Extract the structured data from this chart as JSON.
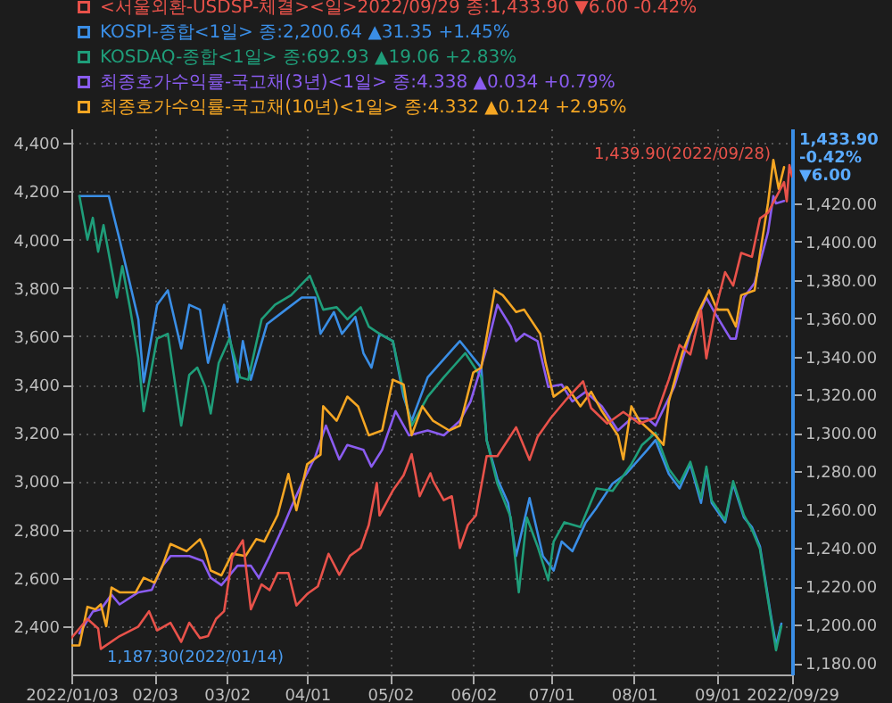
{
  "chart_data": {
    "type": "line",
    "legend": "top left",
    "grid": true,
    "xlim": [
      "2022-01-03",
      "2022-09-29"
    ],
    "xticks": [
      {
        "value": "2022-01-03",
        "label": "2022/01/03"
      },
      {
        "value": "2022-02-03",
        "label": "02/03"
      },
      {
        "value": "2022-03-02",
        "label": "03/02"
      },
      {
        "value": "2022-04-01",
        "label": "04/01"
      },
      {
        "value": "2022-05-02",
        "label": "05/02"
      },
      {
        "value": "2022-06-02",
        "label": "06/02"
      },
      {
        "value": "2022-07-01",
        "label": "07/01"
      },
      {
        "value": "2022-08-01",
        "label": "08/01"
      },
      {
        "value": "2022-09-01",
        "label": "09/01"
      },
      {
        "value": "2022-09-29",
        "label": "2022/09/29"
      }
    ],
    "ylim": [
      2200,
      4460
    ],
    "yticks": [
      {
        "value": 2400,
        "label": "2,400"
      },
      {
        "value": 2600,
        "label": "2,600"
      },
      {
        "value": 2800,
        "label": "2,800"
      },
      {
        "value": 3000,
        "label": "3,000"
      },
      {
        "value": 3200,
        "label": "3,200"
      },
      {
        "value": 3400,
        "label": "3,400"
      },
      {
        "value": 3600,
        "label": "3,600"
      },
      {
        "value": 3800,
        "label": "3,800"
      },
      {
        "value": 4000,
        "label": "4,000"
      },
      {
        "value": 4200,
        "label": "4,200"
      },
      {
        "value": 4400,
        "label": "4,400"
      }
    ],
    "y2lim": [
      1174,
      1459
    ],
    "y2ticks": [
      {
        "value": 1180,
        "label": "1,180.00"
      },
      {
        "value": 1200,
        "label": "1,200.00"
      },
      {
        "value": 1220,
        "label": "1,220.00"
      },
      {
        "value": 1240,
        "label": "1,240.00"
      },
      {
        "value": 1260,
        "label": "1,260.00"
      },
      {
        "value": 1280,
        "label": "1,280.00"
      },
      {
        "value": 1300,
        "label": "1,300.00"
      },
      {
        "value": 1320,
        "label": "1,320.00"
      },
      {
        "value": 1340,
        "label": "1,340.00"
      },
      {
        "value": 1360,
        "label": "1,360.00"
      },
      {
        "value": 1380,
        "label": "1,380.00"
      },
      {
        "value": 1400,
        "label": "1,400.00"
      },
      {
        "value": 1420,
        "label": "1,420.00"
      }
    ],
    "annotations": [
      "1,439.90(2022/09/28)",
      "1,187.30(2022/01/14)",
      "1,433.90\n-0.42%\n▼6.00"
    ],
    "series": [
      {
        "name": "<서울외환-USDSP-체결><일>2022/09/29 종:1,433.90 ▼6.00 -0.42%",
        "color": "#e8524a",
        "axis": "y2",
        "x": [
          "2022-01-03",
          "2022-01-09",
          "2022-01-13",
          "2022-01-14",
          "2022-01-21",
          "2022-01-28",
          "2022-02-01",
          "2022-02-04",
          "2022-02-09",
          "2022-02-13",
          "2022-02-16",
          "2022-02-20",
          "2022-02-23",
          "2022-02-26",
          "2022-03-01",
          "2022-03-04",
          "2022-03-08",
          "2022-03-11",
          "2022-03-15",
          "2022-03-18",
          "2022-03-21",
          "2022-03-25",
          "2022-03-28",
          "2022-04-01",
          "2022-04-05",
          "2022-04-09",
          "2022-04-13",
          "2022-04-17",
          "2022-04-21",
          "2022-04-24",
          "2022-04-27",
          "2022-04-28",
          "2022-05-03",
          "2022-05-07",
          "2022-05-10",
          "2022-05-13",
          "2022-05-17",
          "2022-05-18",
          "2022-05-22",
          "2022-05-25",
          "2022-05-28",
          "2022-05-31",
          "2022-06-03",
          "2022-06-07",
          "2022-06-11",
          "2022-06-18",
          "2022-06-23",
          "2022-06-26",
          "2022-07-01",
          "2022-07-07",
          "2022-07-13",
          "2022-07-16",
          "2022-07-22",
          "2022-07-28",
          "2022-08-03",
          "2022-08-09",
          "2022-08-14",
          "2022-08-18",
          "2022-08-22",
          "2022-08-26",
          "2022-08-28",
          "2022-08-31",
          "2022-09-04",
          "2022-09-07",
          "2022-09-10",
          "2022-09-14",
          "2022-09-17",
          "2022-09-20",
          "2022-09-26",
          "2022-09-27",
          "2022-09-28",
          "2022-09-29"
        ],
        "values": [
          1193,
          1203,
          1198,
          1187.3,
          1194,
          1199,
          1207,
          1197,
          1201,
          1191,
          1201,
          1193,
          1194,
          1203,
          1207,
          1235,
          1244,
          1208,
          1221,
          1218,
          1227,
          1227,
          1210,
          1216,
          1220,
          1237,
          1226,
          1236,
          1240,
          1252,
          1274,
          1257,
          1270,
          1278,
          1289,
          1267,
          1279,
          1275,
          1265,
          1267,
          1240,
          1252,
          1257,
          1288,
          1288,
          1303,
          1286,
          1298,
          1308,
          1318,
          1327,
          1313,
          1305,
          1311,
          1305,
          1308,
          1328,
          1346,
          1341,
          1364,
          1339,
          1362,
          1384,
          1377,
          1394,
          1392,
          1412,
          1415,
          1431,
          1421,
          1439.9,
          1433.9
        ]
      },
      {
        "name": "KOSPI-종합<1일> 종:2,200.64 ▲31.35 +1.45%",
        "color": "#3a8ee6",
        "x": [
          "2022-01-06",
          "2022-01-17",
          "2022-01-21",
          "2022-01-28",
          "2022-01-30",
          "2022-02-04",
          "2022-02-08",
          "2022-02-13",
          "2022-02-16",
          "2022-02-20",
          "2022-02-23",
          "2022-03-01",
          "2022-03-06",
          "2022-03-08",
          "2022-03-11",
          "2022-03-17",
          "2022-03-24",
          "2022-03-30",
          "2022-04-04",
          "2022-04-06",
          "2022-04-11",
          "2022-04-14",
          "2022-04-19",
          "2022-04-22",
          "2022-04-25",
          "2022-04-28",
          "2022-05-03",
          "2022-05-07",
          "2022-05-10",
          "2022-05-16",
          "2022-05-28",
          "2022-06-05",
          "2022-06-07",
          "2022-06-11",
          "2022-06-15",
          "2022-06-18",
          "2022-06-23",
          "2022-06-28",
          "2022-07-02",
          "2022-07-05",
          "2022-07-09",
          "2022-07-14",
          "2022-07-18",
          "2022-07-24",
          "2022-07-29",
          "2022-08-06",
          "2022-08-09",
          "2022-08-14",
          "2022-08-18",
          "2022-08-22",
          "2022-08-26",
          "2022-08-28",
          "2022-08-30",
          "2022-09-04",
          "2022-09-07",
          "2022-09-11",
          "2022-09-14",
          "2022-09-17",
          "2022-09-21",
          "2022-09-23",
          "2022-09-25"
        ],
        "values": [
          4180,
          4180,
          4000,
          3670,
          3410,
          3730,
          3790,
          3550,
          3730,
          3710,
          3490,
          3730,
          3410,
          3580,
          3420,
          3650,
          3710,
          3760,
          3760,
          3610,
          3700,
          3610,
          3680,
          3530,
          3470,
          3610,
          3580,
          3350,
          3250,
          3430,
          3580,
          3470,
          3170,
          3010,
          2910,
          2690,
          2930,
          2690,
          2630,
          2750,
          2710,
          2830,
          2890,
          2990,
          3030,
          3130,
          3170,
          3030,
          2970,
          3070,
          2910,
          3050,
          2910,
          2830,
          2990,
          2850,
          2810,
          2730,
          2450,
          2320,
          2410
        ]
      },
      {
        "name": "KOSDAQ-종합<1일> 종:692.93 ▲19.06 +2.83%",
        "color": "#1f9e7a",
        "x": [
          "2022-01-06",
          "2022-01-09",
          "2022-01-11",
          "2022-01-13",
          "2022-01-15",
          "2022-01-20",
          "2022-01-22",
          "2022-01-25",
          "2022-01-28",
          "2022-01-30",
          "2022-02-04",
          "2022-02-08",
          "2022-02-13",
          "2022-02-16",
          "2022-02-19",
          "2022-02-22",
          "2022-02-24",
          "2022-02-27",
          "2022-03-03",
          "2022-03-07",
          "2022-03-10",
          "2022-03-15",
          "2022-03-20",
          "2022-03-26",
          "2022-04-02",
          "2022-04-07",
          "2022-04-12",
          "2022-04-16",
          "2022-04-21",
          "2022-04-24",
          "2022-04-28",
          "2022-05-03",
          "2022-05-07",
          "2022-05-10",
          "2022-05-16",
          "2022-05-22",
          "2022-05-30",
          "2022-06-05",
          "2022-06-07",
          "2022-06-11",
          "2022-06-16",
          "2022-06-19",
          "2022-06-22",
          "2022-06-26",
          "2022-06-30",
          "2022-07-02",
          "2022-07-06",
          "2022-07-12",
          "2022-07-18",
          "2022-07-24",
          "2022-07-31",
          "2022-08-04",
          "2022-08-09",
          "2022-08-14",
          "2022-08-18",
          "2022-08-22",
          "2022-08-26",
          "2022-08-28",
          "2022-08-30",
          "2022-09-04",
          "2022-09-07",
          "2022-09-11",
          "2022-09-14",
          "2022-09-17",
          "2022-09-21",
          "2022-09-23",
          "2022-09-25"
        ],
        "values": [
          4180,
          4000,
          4090,
          3950,
          4060,
          3760,
          3890,
          3710,
          3510,
          3290,
          3590,
          3610,
          3230,
          3440,
          3470,
          3390,
          3280,
          3490,
          3590,
          3430,
          3420,
          3670,
          3730,
          3770,
          3850,
          3710,
          3720,
          3670,
          3720,
          3640,
          3610,
          3580,
          3370,
          3230,
          3350,
          3430,
          3530,
          3430,
          3170,
          2990,
          2850,
          2540,
          2850,
          2730,
          2590,
          2750,
          2830,
          2810,
          2970,
          2960,
          3070,
          3150,
          3200,
          3050,
          2990,
          3080,
          2930,
          3060,
          2920,
          2840,
          3000,
          2860,
          2800,
          2720,
          2440,
          2300,
          2400
        ]
      },
      {
        "name": "최종호가수익률-국고채(3년)<1일> 종:4.338 ▲0.034 +0.79%",
        "color": "#8a5cf0",
        "x": [
          "2022-01-06",
          "2022-01-11",
          "2022-01-14",
          "2022-01-18",
          "2022-01-21",
          "2022-01-28",
          "2022-02-02",
          "2022-02-06",
          "2022-02-09",
          "2022-02-16",
          "2022-02-21",
          "2022-02-24",
          "2022-02-28",
          "2022-03-06",
          "2022-03-11",
          "2022-03-14",
          "2022-03-18",
          "2022-03-23",
          "2022-03-26",
          "2022-03-30",
          "2022-04-04",
          "2022-04-08",
          "2022-04-13",
          "2022-04-16",
          "2022-04-22",
          "2022-04-25",
          "2022-04-29",
          "2022-05-04",
          "2022-05-09",
          "2022-05-16",
          "2022-05-22",
          "2022-05-28",
          "2022-06-01",
          "2022-06-07",
          "2022-06-11",
          "2022-06-16",
          "2022-06-18",
          "2022-06-21",
          "2022-06-26",
          "2022-06-30",
          "2022-07-05",
          "2022-07-09",
          "2022-07-14",
          "2022-07-20",
          "2022-07-26",
          "2022-07-31",
          "2022-08-06",
          "2022-08-09",
          "2022-08-16",
          "2022-08-22",
          "2022-08-28",
          "2022-08-31",
          "2022-09-06",
          "2022-09-08",
          "2022-09-11",
          "2022-09-15",
          "2022-09-20",
          "2022-09-22",
          "2022-09-23",
          "2022-09-26"
        ],
        "values": [
          2370,
          2460,
          2470,
          2530,
          2490,
          2540,
          2550,
          2650,
          2690,
          2690,
          2670,
          2600,
          2570,
          2650,
          2650,
          2600,
          2690,
          2810,
          2890,
          2990,
          3100,
          3230,
          3090,
          3150,
          3130,
          3060,
          3130,
          3290,
          3190,
          3210,
          3190,
          3250,
          3330,
          3550,
          3730,
          3640,
          3580,
          3610,
          3580,
          3390,
          3400,
          3330,
          3370,
          3310,
          3210,
          3260,
          3260,
          3230,
          3390,
          3610,
          3760,
          3700,
          3590,
          3590,
          3760,
          3820,
          4030,
          4180,
          4150,
          4160
        ]
      },
      {
        "name": "최종호가수익률-국고채(10년)<1일> 종:4.332 ▲0.124 +2.95%",
        "color": "#f5a623",
        "x": [
          "2022-01-03",
          "2022-01-06",
          "2022-01-09",
          "2022-01-12",
          "2022-01-14",
          "2022-01-16",
          "2022-01-18",
          "2022-01-21",
          "2022-01-27",
          "2022-01-30",
          "2022-02-03",
          "2022-02-06",
          "2022-02-09",
          "2022-02-15",
          "2022-02-20",
          "2022-02-22",
          "2022-02-24",
          "2022-02-28",
          "2022-03-04",
          "2022-03-09",
          "2022-03-13",
          "2022-03-16",
          "2022-03-21",
          "2022-03-25",
          "2022-03-28",
          "2022-04-01",
          "2022-04-06",
          "2022-04-07",
          "2022-04-12",
          "2022-04-16",
          "2022-04-20",
          "2022-04-24",
          "2022-04-29",
          "2022-05-03",
          "2022-05-07",
          "2022-05-10",
          "2022-05-14",
          "2022-05-18",
          "2022-05-24",
          "2022-05-28",
          "2022-06-02",
          "2022-06-05",
          "2022-06-10",
          "2022-06-13",
          "2022-06-18",
          "2022-06-21",
          "2022-06-27",
          "2022-06-29",
          "2022-07-02",
          "2022-07-07",
          "2022-07-12",
          "2022-07-16",
          "2022-07-20",
          "2022-07-26",
          "2022-07-28",
          "2022-07-31",
          "2022-08-03",
          "2022-08-09",
          "2022-08-12",
          "2022-08-14",
          "2022-08-19",
          "2022-08-25",
          "2022-08-29",
          "2022-09-01",
          "2022-09-05",
          "2022-09-08",
          "2022-09-10",
          "2022-09-15",
          "2022-09-17",
          "2022-09-20",
          "2022-09-22",
          "2022-09-24",
          "2022-09-26"
        ],
        "values": [
          2320,
          2320,
          2480,
          2470,
          2490,
          2400,
          2560,
          2540,
          2540,
          2600,
          2580,
          2650,
          2740,
          2710,
          2760,
          2710,
          2630,
          2610,
          2700,
          2690,
          2760,
          2750,
          2860,
          3030,
          2880,
          3070,
          3110,
          3310,
          3250,
          3350,
          3310,
          3190,
          3210,
          3420,
          3400,
          3190,
          3310,
          3250,
          3210,
          3230,
          3450,
          3470,
          3790,
          3770,
          3700,
          3710,
          3610,
          3490,
          3350,
          3390,
          3310,
          3370,
          3290,
          3190,
          3090,
          3310,
          3250,
          3190,
          3150,
          3330,
          3530,
          3700,
          3790,
          3710,
          3710,
          3640,
          3770,
          3790,
          3940,
          4150,
          4330,
          4210,
          4300
        ]
      }
    ]
  }
}
